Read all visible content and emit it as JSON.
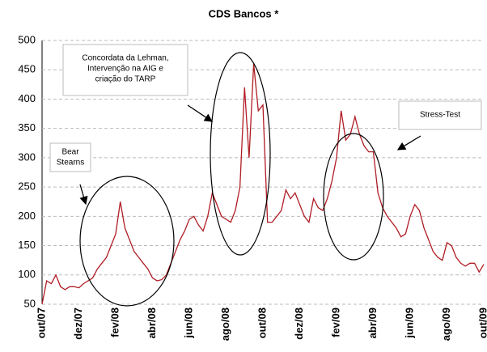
{
  "chart_data": {
    "type": "line",
    "title": "CDS Bancos *",
    "categories": [
      "out/07",
      null,
      null,
      null,
      null,
      null,
      null,
      null,
      "dez/07",
      null,
      null,
      null,
      null,
      null,
      null,
      null,
      "fev/08",
      null,
      null,
      null,
      null,
      null,
      null,
      null,
      "abr/08",
      null,
      null,
      null,
      null,
      null,
      null,
      null,
      "jun/08",
      null,
      null,
      null,
      null,
      null,
      null,
      null,
      "ago/08",
      null,
      null,
      null,
      null,
      null,
      null,
      null,
      "out/08",
      null,
      null,
      null,
      null,
      null,
      null,
      null,
      "dez/08",
      null,
      null,
      null,
      null,
      null,
      null,
      null,
      "fev/09",
      null,
      null,
      null,
      null,
      null,
      null,
      null,
      "abr/09",
      null,
      null,
      null,
      null,
      null,
      null,
      null,
      "jun/09",
      null,
      null,
      null,
      null,
      null,
      null,
      null,
      "ago/09",
      null,
      null,
      null,
      null,
      null,
      null,
      null,
      "out/09"
    ],
    "values": [
      50,
      90,
      85,
      100,
      80,
      75,
      80,
      80,
      78,
      85,
      90,
      95,
      110,
      120,
      130,
      150,
      170,
      225,
      180,
      160,
      140,
      130,
      120,
      110,
      95,
      90,
      92,
      100,
      120,
      140,
      160,
      175,
      195,
      200,
      185,
      175,
      200,
      240,
      220,
      200,
      195,
      190,
      210,
      250,
      420,
      300,
      460,
      380,
      390,
      190,
      190,
      200,
      210,
      245,
      230,
      240,
      220,
      200,
      190,
      230,
      215,
      210,
      230,
      260,
      300,
      380,
      330,
      340,
      370,
      340,
      320,
      310,
      310,
      240,
      215,
      200,
      190,
      180,
      165,
      170,
      200,
      220,
      210,
      180,
      160,
      140,
      130,
      125,
      155,
      150,
      130,
      120,
      115,
      120,
      120,
      105,
      118
    ],
    "color": "#b01c24",
    "ylim": [
      50,
      500
    ],
    "yticks": [
      50,
      100,
      150,
      200,
      250,
      300,
      350,
      400,
      450,
      500
    ],
    "grid": true,
    "annotations": [
      {
        "lines": [
          "Bear",
          "Stearns"
        ]
      },
      {
        "lines": [
          "Concordata  da Lehman,",
          "Intervenção  na AIG e",
          "criação do TARP"
        ]
      },
      {
        "lines": [
          "Stress-Test"
        ]
      }
    ]
  }
}
